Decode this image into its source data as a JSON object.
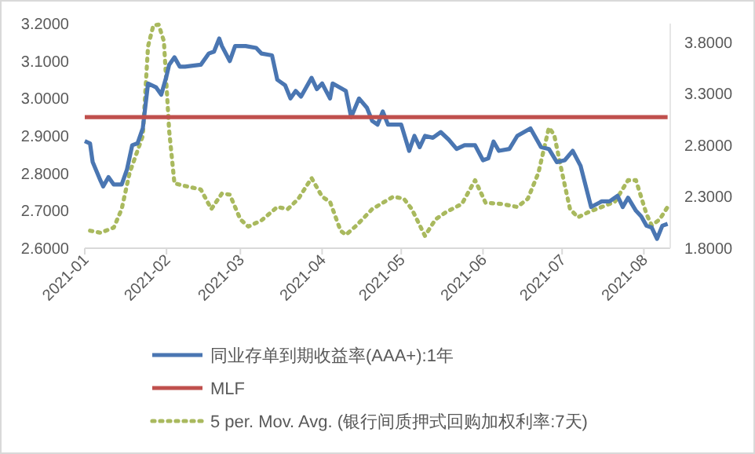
{
  "chart_data": {
    "type": "line",
    "series": [
      {
        "name": "同业存单到期收益率(AAA+):1年",
        "color": "#4a76b2",
        "line_style": "solid",
        "axis": "y",
        "x": [
          "2021-01-01",
          "2021-01-03",
          "2021-01-04",
          "2021-01-07",
          "2021-01-08",
          "2021-01-10",
          "2021-01-12",
          "2021-01-15",
          "2021-01-17",
          "2021-01-19",
          "2021-01-21",
          "2021-01-23",
          "2021-01-25",
          "2021-01-28",
          "2021-01-30",
          "2021-02-01",
          "2021-02-02",
          "2021-02-04",
          "2021-02-06",
          "2021-02-08",
          "2021-02-14",
          "2021-02-17",
          "2021-02-19",
          "2021-02-21",
          "2021-02-22",
          "2021-02-25",
          "2021-02-27",
          "2021-03-03",
          "2021-03-07",
          "2021-03-09",
          "2021-03-13",
          "2021-03-15",
          "2021-03-18",
          "2021-03-20",
          "2021-03-22",
          "2021-03-24",
          "2021-03-28",
          "2021-03-30",
          "2021-04-01",
          "2021-04-04",
          "2021-04-05",
          "2021-04-10",
          "2021-04-12",
          "2021-04-15",
          "2021-04-18",
          "2021-04-20",
          "2021-04-22",
          "2021-04-24",
          "2021-04-26",
          "2021-05-01",
          "2021-05-04",
          "2021-05-06",
          "2021-05-08",
          "2021-05-10",
          "2021-05-13",
          "2021-05-16",
          "2021-05-19",
          "2021-05-22",
          "2021-05-25",
          "2021-05-29",
          "2021-06-01",
          "2021-06-03",
          "2021-06-05",
          "2021-06-07",
          "2021-06-11",
          "2021-06-14",
          "2021-06-19",
          "2021-06-23",
          "2021-06-26",
          "2021-06-29",
          "2021-07-02",
          "2021-07-05",
          "2021-07-08",
          "2021-07-12",
          "2021-07-16",
          "2021-07-19",
          "2021-07-22",
          "2021-07-24",
          "2021-07-26",
          "2021-07-29",
          "2021-07-31",
          "2021-08-02",
          "2021-08-04",
          "2021-08-06",
          "2021-08-08",
          "2021-08-10"
        ],
        "values": [
          2.886,
          2.88,
          2.83,
          2.78,
          2.765,
          2.79,
          2.77,
          2.77,
          2.81,
          2.875,
          2.88,
          2.92,
          3.04,
          3.03,
          3.01,
          3.06,
          3.09,
          3.11,
          3.085,
          3.085,
          3.09,
          3.12,
          3.125,
          3.16,
          3.14,
          3.1,
          3.14,
          3.14,
          3.135,
          3.12,
          3.115,
          3.05,
          3.035,
          3.0,
          3.02,
          3.005,
          3.055,
          3.025,
          3.04,
          3.0,
          3.04,
          3.02,
          2.95,
          3.0,
          2.975,
          2.94,
          2.93,
          2.965,
          2.93,
          2.93,
          2.86,
          2.9,
          2.87,
          2.9,
          2.895,
          2.91,
          2.89,
          2.865,
          2.875,
          2.875,
          2.835,
          2.84,
          2.885,
          2.86,
          2.865,
          2.9,
          2.92,
          2.87,
          2.865,
          2.83,
          2.835,
          2.86,
          2.82,
          2.71,
          2.725,
          2.725,
          2.74,
          2.71,
          2.735,
          2.7,
          2.685,
          2.66,
          2.655,
          2.625,
          2.66,
          2.665
        ]
      },
      {
        "name": "MLF",
        "color": "#c0504d",
        "line_style": "solid",
        "axis": "y",
        "x": [
          "2021-01-01",
          "2021-08-10"
        ],
        "values": [
          2.95,
          2.95
        ]
      },
      {
        "name": "5 per. Mov. Avg. (银行间质押式回购加权利率:7天)",
        "color": "#a9b95e",
        "line_style": "dotted",
        "axis": "y2",
        "x": [
          "2021-01-03",
          "2021-01-07",
          "2021-01-12",
          "2021-01-15",
          "2021-01-18",
          "2021-01-23",
          "2021-01-25",
          "2021-01-27",
          "2021-01-29",
          "2021-01-31",
          "2021-02-02",
          "2021-02-04",
          "2021-02-07",
          "2021-02-14",
          "2021-02-18",
          "2021-02-22",
          "2021-02-25",
          "2021-03-01",
          "2021-03-04",
          "2021-03-09",
          "2021-03-15",
          "2021-03-19",
          "2021-03-23",
          "2021-03-28",
          "2021-04-01",
          "2021-04-04",
          "2021-04-08",
          "2021-04-10",
          "2021-04-14",
          "2021-04-20",
          "2021-04-28",
          "2021-05-02",
          "2021-05-05",
          "2021-05-10",
          "2021-05-14",
          "2021-05-18",
          "2021-05-24",
          "2021-05-29",
          "2021-06-02",
          "2021-06-08",
          "2021-06-14",
          "2021-06-18",
          "2021-06-22",
          "2021-06-26",
          "2021-06-28",
          "2021-07-01",
          "2021-07-04",
          "2021-07-07",
          "2021-07-11",
          "2021-07-16",
          "2021-07-21",
          "2021-07-26",
          "2021-07-29",
          "2021-08-02",
          "2021-08-04",
          "2021-08-07",
          "2021-08-10"
        ],
        "values": [
          1.97,
          1.95,
          2.0,
          2.18,
          2.53,
          2.89,
          3.76,
          3.96,
          3.97,
          3.81,
          2.94,
          2.43,
          2.41,
          2.37,
          2.18,
          2.33,
          2.32,
          2.08,
          2.01,
          2.07,
          2.2,
          2.18,
          2.28,
          2.48,
          2.3,
          2.25,
          1.97,
          1.93,
          2.02,
          2.18,
          2.3,
          2.28,
          2.18,
          1.92,
          2.08,
          2.15,
          2.23,
          2.46,
          2.24,
          2.23,
          2.2,
          2.28,
          2.53,
          2.97,
          2.9,
          2.53,
          2.18,
          2.1,
          2.15,
          2.2,
          2.25,
          2.46,
          2.46,
          2.13,
          2.02,
          2.08,
          2.2
        ]
      }
    ],
    "xlim": [
      "2021-01-01",
      "2021-08-11"
    ],
    "xticks": [
      {
        "value": "2021-01-01",
        "label": "2021-01"
      },
      {
        "value": "2021-02-01",
        "label": "2021-02"
      },
      {
        "value": "2021-03-01",
        "label": "2021-03"
      },
      {
        "value": "2021-04-01",
        "label": "2021-04"
      },
      {
        "value": "2021-05-01",
        "label": "2021-05"
      },
      {
        "value": "2021-06-01",
        "label": "2021-06"
      },
      {
        "value": "2021-07-01",
        "label": "2021-07"
      },
      {
        "value": "2021-08-01",
        "label": "2021-08"
      }
    ],
    "ylim": [
      2.6,
      3.2
    ],
    "yticks": [
      {
        "value": 2.6,
        "label": "2.6000"
      },
      {
        "value": 2.7,
        "label": "2.7000"
      },
      {
        "value": 2.8,
        "label": "2.8000"
      },
      {
        "value": 2.9,
        "label": "2.9000"
      },
      {
        "value": 3.0,
        "label": "3.0000"
      },
      {
        "value": 3.1,
        "label": "3.1000"
      },
      {
        "value": 3.2,
        "label": "3.2000"
      }
    ],
    "y2lim": [
      1.8,
      3.98
    ],
    "y2ticks": [
      {
        "value": 1.8,
        "label": "1.8000"
      },
      {
        "value": 2.3,
        "label": "2.3000"
      },
      {
        "value": 2.8,
        "label": "2.8000"
      },
      {
        "value": 3.3,
        "label": "3.3000"
      },
      {
        "value": 3.8,
        "label": "3.8000"
      }
    ],
    "legend": "bottom",
    "grid": false
  }
}
